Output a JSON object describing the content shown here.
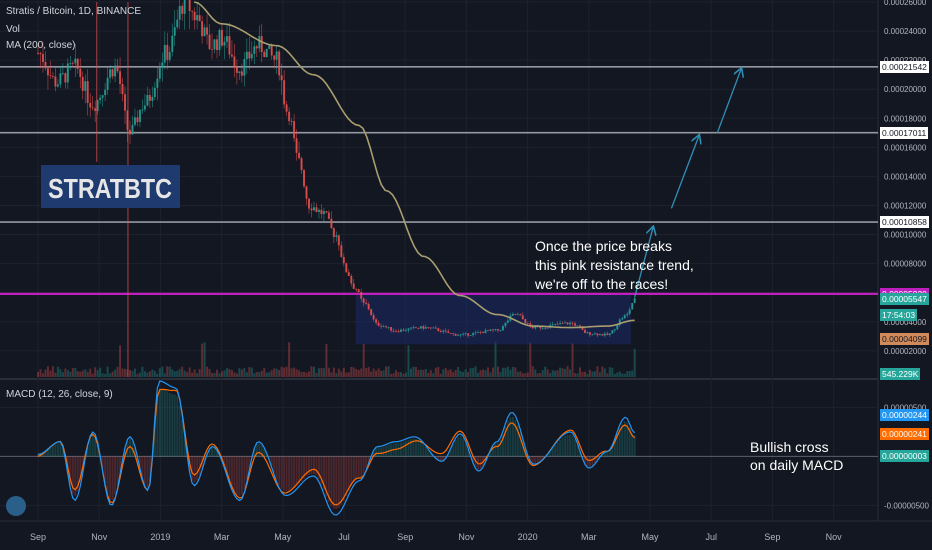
{
  "header": {
    "title": "Stratis / Bitcoin, 1D, BINANCE",
    "vol": "Vol",
    "ma": "MA (200, close)",
    "macd": "MACD (12, 26, close, 9)"
  },
  "annotations": {
    "ticker_label": "STRATBTC",
    "note_lines": [
      "Once the price breaks",
      "this pink resistance trend,",
      "we're off to the races!"
    ],
    "macd_note_lines": [
      "Bullish cross",
      "on daily MACD"
    ]
  },
  "colors": {
    "background": "#131722",
    "resistance": "#c01fc0",
    "ma_line": "#a89e6f",
    "macd_line": "#2196f3",
    "signal_line": "#ff6d00",
    "zone": "#1b2a66",
    "arrow": "#2f8fb5",
    "up": "#26a69a",
    "down": "#ef5350"
  },
  "chart_data": {
    "type": "line",
    "price_axis": {
      "ticks": [
        "0.00026000",
        "0.00024000",
        "0.00022000",
        "0.00020000",
        "0.00018000",
        "0.00016000",
        "0.00014000",
        "0.00012000",
        "0.00010000",
        "0.00008000",
        "0.00006000",
        "0.00004000",
        "0.00002000"
      ],
      "ylim": [
        2e-06,
        0.00026
      ]
    },
    "macd_axis": {
      "ticks": [
        "0.00000500",
        "-0.00000500"
      ],
      "ylim": [
        -6.5e-06,
        7.8e-06
      ]
    },
    "time_axis": {
      "ticks": [
        "Sep",
        "Nov",
        "2019",
        "Mar",
        "May",
        "Jul",
        "Sep",
        "Nov",
        "2020",
        "Mar",
        "May",
        "Jul",
        "Sep",
        "Nov"
      ]
    },
    "horizontal_levels": [
      {
        "value": 0.00021542,
        "label": "0.00021542"
      },
      {
        "value": 0.00017011,
        "label": "0.00017011"
      },
      {
        "value": 0.00010858,
        "label": "0.00010858"
      }
    ],
    "resistance": {
      "value": 5.92e-05,
      "label": "0.00005920"
    },
    "price_tags": [
      {
        "label": "0.00005547",
        "value": 5.547e-05
      },
      {
        "label": "17:54:03",
        "value": 4.48e-05
      },
      {
        "label": "0.00004099",
        "value": 2.799e-05
      },
      {
        "label": "545.229K",
        "value": 4e-06
      }
    ],
    "macd_tags": [
      {
        "label": "0.00000244",
        "value": 4.2e-06
      },
      {
        "label": "0.00000241",
        "value": 2.25e-06
      },
      {
        "label": "0.00000003",
        "value": 0.0
      }
    ],
    "consolidation_zone": {
      "t_start": 1.73,
      "t_end": 3.23,
      "low": 2.45e-05,
      "high": 5.9e-05
    },
    "price_path": [
      [
        0,
        0.000225
      ],
      [
        0.1,
        0.000205
      ],
      [
        0.2,
        0.000215
      ],
      [
        0.3,
        0.00019
      ],
      [
        0.42,
        0.000215
      ],
      [
        0.5,
        0.00017
      ],
      [
        0.58,
        0.00019
      ],
      [
        0.7,
        0.000225
      ],
      [
        0.8,
        0.00026
      ],
      [
        0.86,
        0.00025
      ],
      [
        0.94,
        0.00023
      ],
      [
        1.0,
        0.000235
      ],
      [
        1.1,
        0.000215
      ],
      [
        1.2,
        0.00023
      ],
      [
        1.3,
        0.00022
      ],
      [
        1.36,
        0.000185
      ],
      [
        1.42,
        0.00015
      ],
      [
        1.48,
        0.00012
      ],
      [
        1.55,
        0.000115
      ],
      [
        1.62,
        0.0001
      ],
      [
        1.68,
        7.5e-05
      ],
      [
        1.72,
        6.4e-05
      ],
      [
        1.78,
        5.2e-05
      ],
      [
        1.85,
        3.8e-05
      ],
      [
        1.95,
        3.4e-05
      ],
      [
        2.1,
        3.6e-05
      ],
      [
        2.3,
        3.1e-05
      ],
      [
        2.5,
        3.4e-05
      ],
      [
        2.6,
        4.5e-05
      ],
      [
        2.7,
        3.6e-05
      ],
      [
        2.9,
        3.9e-05
      ],
      [
        3.0,
        3.2e-05
      ],
      [
        3.1,
        3.1e-05
      ],
      [
        3.2,
        4.4e-05
      ],
      [
        3.25,
        5.5e-05
      ]
    ],
    "ma_path": [
      [
        0.85,
        0.00026
      ],
      [
        1.0,
        0.000245
      ],
      [
        1.3,
        0.00023
      ],
      [
        1.5,
        0.00021
      ],
      [
        1.75,
        0.000175
      ],
      [
        1.9,
        0.00013
      ],
      [
        2.1,
        8.5e-05
      ],
      [
        2.3,
        5.8e-05
      ],
      [
        2.5,
        4.5e-05
      ],
      [
        2.7,
        3.7e-05
      ],
      [
        2.9,
        3.6e-05
      ],
      [
        3.1,
        3.7e-05
      ],
      [
        3.25,
        4.1e-05
      ]
    ],
    "macd_path": [
      [
        0,
        2e-07
      ],
      [
        0.12,
        1.5e-06
      ],
      [
        0.2,
        -4.5e-06
      ],
      [
        0.3,
        2.5e-06
      ],
      [
        0.4,
        -5e-06
      ],
      [
        0.5,
        2e-06
      ],
      [
        0.6,
        -3.5e-06
      ],
      [
        0.66,
        7.7e-06
      ],
      [
        0.75,
        7e-06
      ],
      [
        0.85,
        -3e-06
      ],
      [
        0.95,
        1e-06
      ],
      [
        1.1,
        -4.5e-06
      ],
      [
        1.2,
        1.5e-06
      ],
      [
        1.35,
        -4e-06
      ],
      [
        1.5,
        -2e-06
      ],
      [
        1.62,
        -6e-06
      ],
      [
        1.75,
        -2.5e-06
      ],
      [
        1.85,
        1e-06
      ],
      [
        1.95,
        1.5e-06
      ],
      [
        2.05,
        2e-06
      ],
      [
        2.2,
        -5e-07
      ],
      [
        2.3,
        2.3e-06
      ],
      [
        2.4,
        -1.5e-06
      ],
      [
        2.5,
        1.5e-06
      ],
      [
        2.58,
        4.5e-06
      ],
      [
        2.7,
        -8e-07
      ],
      [
        2.9,
        2.5e-06
      ],
      [
        3.0,
        -1.2e-06
      ],
      [
        3.1,
        5e-07
      ],
      [
        3.2,
        4e-06
      ],
      [
        3.25,
        2.4e-06
      ]
    ],
    "signal_path": [
      [
        0,
        0.0
      ],
      [
        0.12,
        1e-06
      ],
      [
        0.2,
        -4e-06
      ],
      [
        0.3,
        2e-06
      ],
      [
        0.4,
        -4.5e-06
      ],
      [
        0.5,
        1.6e-06
      ],
      [
        0.6,
        -3e-06
      ],
      [
        0.66,
        7e-06
      ],
      [
        0.75,
        6.5e-06
      ],
      [
        0.85,
        -2.5e-06
      ],
      [
        0.95,
        8e-07
      ],
      [
        1.1,
        -4e-06
      ],
      [
        1.2,
        1e-06
      ],
      [
        1.35,
        -3.5e-06
      ],
      [
        1.5,
        -1.8e-06
      ],
      [
        1.62,
        -5.5e-06
      ],
      [
        1.75,
        -2.2e-06
      ],
      [
        1.85,
        8e-07
      ],
      [
        1.95,
        1.3e-06
      ],
      [
        2.05,
        1.8e-06
      ],
      [
        2.2,
        -2e-07
      ],
      [
        2.3,
        2e-06
      ],
      [
        2.4,
        -1e-06
      ],
      [
        2.5,
        1.3e-06
      ],
      [
        2.58,
        4e-06
      ],
      [
        2.7,
        -5e-07
      ],
      [
        2.9,
        2.2e-06
      ],
      [
        3.0,
        -1e-06
      ],
      [
        3.1,
        3e-07
      ],
      [
        3.2,
        3.5e-06
      ],
      [
        3.25,
        2.4e-06
      ]
    ],
    "projection_arrows": [
      {
        "from": [
          3.25,
          5.7e-05
        ],
        "to": [
          3.35,
          0.000105
        ]
      },
      {
        "from": [
          3.45,
          0.000118
        ],
        "to": [
          3.6,
          0.000168
        ]
      },
      {
        "from": [
          3.7,
          0.00017
        ],
        "to": [
          3.83,
          0.000214
        ]
      }
    ]
  }
}
